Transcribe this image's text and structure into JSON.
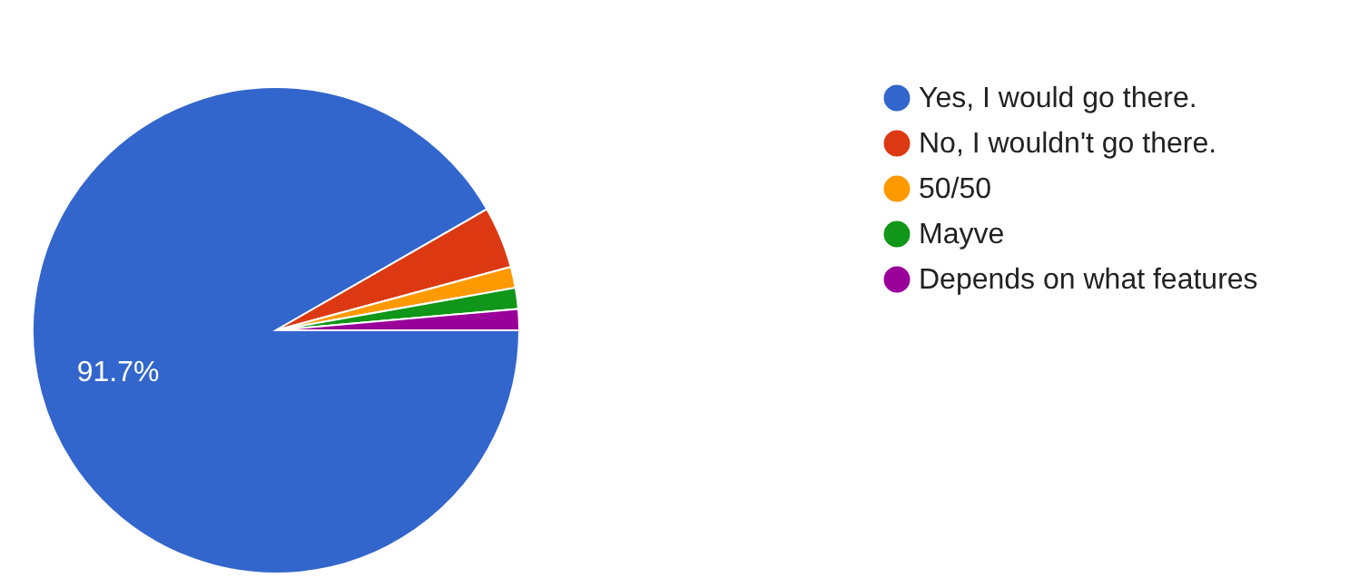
{
  "chart_data": {
    "type": "pie",
    "categories": [
      "Yes, I would go there.",
      "No, I wouldn't go there.",
      "50/50",
      "Mayve",
      "Depends on what features"
    ],
    "values": [
      91.7,
      4.1,
      1.4,
      1.4,
      1.4
    ],
    "colors": [
      "#3366cc",
      "#dc3912",
      "#ff9900",
      "#109618",
      "#990099"
    ],
    "value_labels": [
      "91.7%",
      null,
      null,
      null,
      null
    ],
    "legend": "right"
  }
}
